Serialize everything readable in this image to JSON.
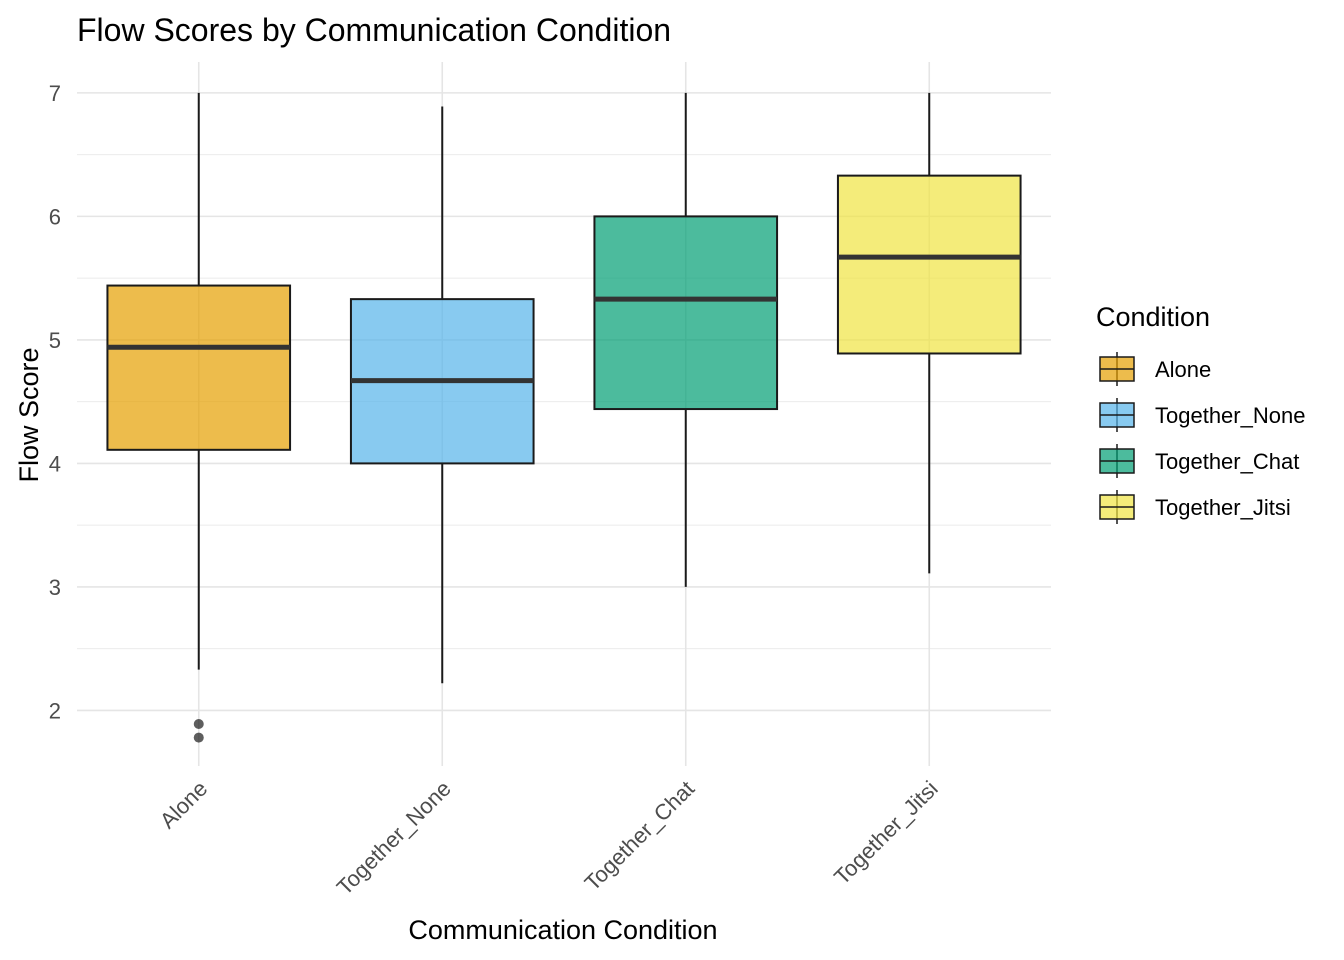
{
  "chart_data": {
    "type": "boxplot",
    "title": "Flow Scores by Communication Condition",
    "xlabel": "Communication Condition",
    "ylabel": "Flow Score",
    "ylim": [
      1.55,
      7.25
    ],
    "y_ticks": [
      2,
      3,
      4,
      5,
      6,
      7
    ],
    "grid": "on",
    "legend": {
      "title": "Condition",
      "position": "right"
    },
    "categories": [
      "Alone",
      "Together_None",
      "Together_Chat",
      "Together_Jitsi"
    ],
    "series": [
      {
        "name": "Alone",
        "color": "#E69F00",
        "whisker_low": 2.33,
        "q1": 4.11,
        "median": 4.94,
        "q3": 5.44,
        "whisker_high": 7.0,
        "outliers": [
          1.89,
          1.78
        ]
      },
      {
        "name": "Together_None",
        "color": "#56B4E9",
        "whisker_low": 2.22,
        "q1": 4.0,
        "median": 4.67,
        "q3": 5.33,
        "whisker_high": 6.89,
        "outliers": []
      },
      {
        "name": "Together_Chat",
        "color": "#009E73",
        "whisker_low": 3.0,
        "q1": 4.44,
        "median": 5.33,
        "q3": 6.0,
        "whisker_high": 7.0,
        "outliers": []
      },
      {
        "name": "Together_Jitsi",
        "color": "#F0E442",
        "whisker_low": 3.11,
        "q1": 4.89,
        "median": 5.67,
        "q3": 6.33,
        "whisker_high": 7.0,
        "outliers": []
      }
    ]
  }
}
